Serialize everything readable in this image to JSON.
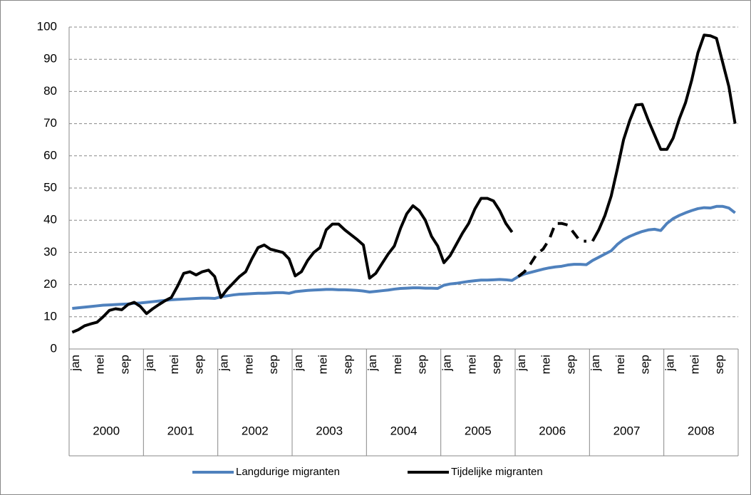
{
  "chart_data": {
    "type": "line",
    "categories": [
      "jan",
      null,
      null,
      null,
      "mei",
      null,
      null,
      null,
      "sep",
      null,
      null,
      null,
      "jan",
      null,
      null,
      null,
      "mei",
      null,
      null,
      null,
      "sep",
      null,
      null,
      null,
      "jan",
      null,
      null,
      null,
      "mei",
      null,
      null,
      null,
      "sep",
      null,
      null,
      null,
      "jan",
      null,
      null,
      null,
      "mei",
      null,
      null,
      null,
      "sep",
      null,
      null,
      null,
      "jan",
      null,
      null,
      null,
      "mei",
      null,
      null,
      null,
      "sep",
      null,
      null,
      null,
      "jan",
      null,
      null,
      null,
      "mei",
      null,
      null,
      null,
      "sep",
      null,
      null,
      null,
      "jan",
      null,
      null,
      null,
      "mei",
      null,
      null,
      null,
      "sep",
      null,
      null,
      null,
      "jan",
      null,
      null,
      null,
      "mei",
      null,
      null,
      null,
      "sep",
      null,
      null,
      null,
      "jan",
      null,
      null,
      null,
      "mei",
      null,
      null,
      null,
      "sep",
      null,
      null,
      null
    ],
    "groups": [
      "2000",
      "2001",
      "2002",
      "2003",
      "2004",
      "2005",
      "2006",
      "2007",
      "2008"
    ],
    "series": [
      {
        "name": "Langdurige migranten",
        "color": "#4f81bd",
        "values": [
          12.6,
          12.8,
          13,
          13.2,
          13.4,
          13.6,
          13.7,
          13.8,
          13.9,
          14,
          14.2,
          14.3,
          14.5,
          14.7,
          14.9,
          15.1,
          15.3,
          15.4,
          15.5,
          15.6,
          15.7,
          15.8,
          15.8,
          15.7,
          16.2,
          16.5,
          16.8,
          17,
          17.1,
          17.2,
          17.3,
          17.3,
          17.4,
          17.5,
          17.5,
          17.3,
          17.8,
          18,
          18.2,
          18.3,
          18.4,
          18.5,
          18.5,
          18.4,
          18.4,
          18.3,
          18.2,
          18,
          17.7,
          17.9,
          18.1,
          18.3,
          18.6,
          18.8,
          18.9,
          19,
          19,
          18.9,
          18.9,
          18.8,
          19.8,
          20.2,
          20.4,
          20.7,
          21,
          21.2,
          21.4,
          21.4,
          21.5,
          21.6,
          21.5,
          21.3,
          22.5,
          23.3,
          23.8,
          24.3,
          24.8,
          25.2,
          25.5,
          25.7,
          26.1,
          26.3,
          26.3,
          26.2,
          27.5,
          28.5,
          29.5,
          30.5,
          32.5,
          34,
          35,
          35.8,
          36.5,
          37,
          37.2,
          36.8,
          39,
          40.5,
          41.5,
          42.3,
          43,
          43.6,
          43.9,
          43.8,
          44.3,
          44.3,
          43.8,
          42.3
        ]
      },
      {
        "name": "Tijdelijke migranten",
        "color": "#000000",
        "dashed_groups": [
          6
        ],
        "values": [
          5.2,
          6,
          7.2,
          7.8,
          8.3,
          10,
          12,
          12.5,
          12.2,
          13.8,
          14.5,
          13.2,
          11,
          12.5,
          13.8,
          15,
          16,
          19.5,
          23.5,
          24,
          23,
          24,
          24.5,
          22.5,
          16,
          18.5,
          20.5,
          22.5,
          24,
          28,
          31.5,
          32.3,
          31,
          30.5,
          30,
          28,
          22.7,
          24,
          27.5,
          30,
          31.5,
          37,
          38.8,
          38.8,
          37,
          35.5,
          34,
          32.3,
          22,
          23.5,
          26.5,
          29.5,
          32,
          37.5,
          42,
          44.5,
          43,
          40,
          35,
          32,
          26.8,
          29,
          32.5,
          36,
          39,
          43.5,
          46.8,
          46.8,
          46,
          43,
          39,
          36.3,
          22.5,
          24,
          26.5,
          29.5,
          31,
          34,
          39,
          39,
          38.5,
          36,
          33.5,
          33.5,
          33.5,
          37,
          41.5,
          47.5,
          56,
          65,
          71,
          75.8,
          76,
          71,
          66.5,
          62,
          62,
          65.5,
          71.5,
          76.5,
          83.5,
          92,
          97.5,
          97.3,
          96.5,
          89,
          81.5,
          70
        ]
      }
    ],
    "ylim": [
      0,
      100
    ],
    "yticks": [
      0,
      10,
      20,
      30,
      40,
      50,
      60,
      70,
      80,
      90,
      100
    ],
    "grid": true,
    "legend": "bottom"
  }
}
